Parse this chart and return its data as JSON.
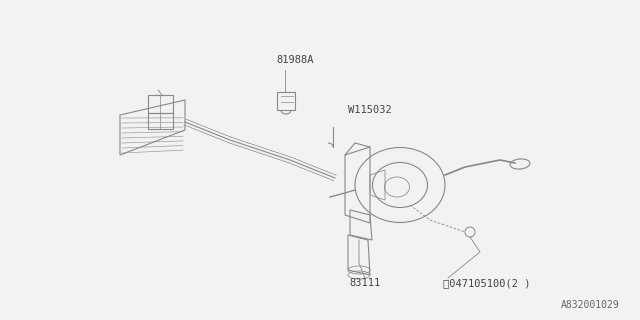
{
  "bg_color": "#f2f2f2",
  "diagram_id": "A832001029",
  "labels": {
    "part1": "81988A",
    "part2": "W115032",
    "part3": "83111",
    "part4": "047105100(2 )"
  },
  "line_color": "#888888",
  "text_color": "#444444",
  "font_size": 7.5,
  "figsize": [
    6.4,
    3.2
  ],
  "dpi": 100
}
